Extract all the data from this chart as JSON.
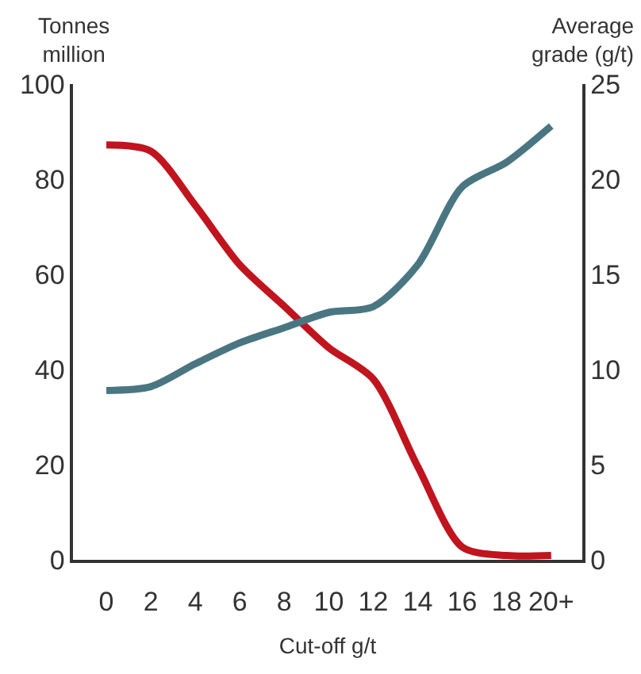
{
  "chart_data": {
    "type": "line",
    "xlabel": "Cut-off g/t",
    "ylabel": "Tonnes million",
    "y2label": "Average grade (g/t)",
    "categories": [
      "0",
      "2",
      "4",
      "6",
      "8",
      "10",
      "12",
      "14",
      "16",
      "18",
      "20+"
    ],
    "series": [
      {
        "color": "#c0141e",
        "values": [
          87.2,
          85.9,
          74.5,
          62,
          53.3,
          44.6,
          38,
          19.6,
          2.7,
          0.9,
          0.9
        ]
      },
      {
        "color": "#4a7682",
        "axis": "y2",
        "values": [
          8.9,
          9.1,
          10.3,
          11.4,
          12.2,
          13.0,
          13.3,
          15.5,
          19.6,
          20.9,
          22.8
        ]
      }
    ],
    "ylim": [
      0,
      100
    ],
    "yticks": [
      0,
      20,
      40,
      60,
      80,
      100
    ],
    "y2lim": [
      0,
      25
    ],
    "y2ticks": [
      0,
      5,
      10,
      15,
      20,
      25
    ],
    "marker": "none",
    "line_style": "solid"
  }
}
